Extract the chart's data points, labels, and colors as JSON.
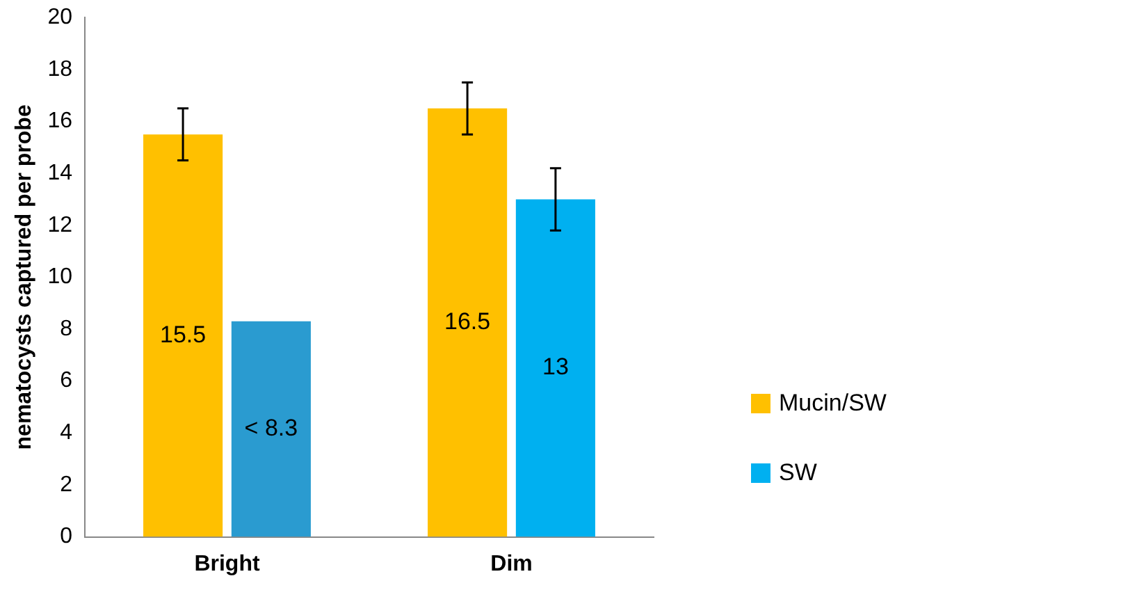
{
  "chart_data": {
    "type": "bar",
    "ylabel": "nematocysts captured per probe",
    "categories": [
      "Bright",
      "Dim"
    ],
    "series": [
      {
        "name": "Mucin/SW",
        "color": "#ffc000",
        "values": [
          15.5,
          16.5
        ],
        "errors": [
          1,
          1
        ],
        "value_labels": [
          "15.5",
          "16.5"
        ]
      },
      {
        "name": "SW",
        "color": "#00b0f0",
        "colors": [
          "#2a9bd0",
          "#00b0f0"
        ],
        "values": [
          8.3,
          13
        ],
        "errors": [
          null,
          1.2
        ],
        "value_labels": [
          "< 8.3",
          "13"
        ]
      }
    ],
    "ylim": [
      0,
      20
    ],
    "yticks": [
      0,
      2,
      4,
      6,
      8,
      10,
      12,
      14,
      16,
      18,
      20
    ],
    "grid": false,
    "legend": "right"
  }
}
